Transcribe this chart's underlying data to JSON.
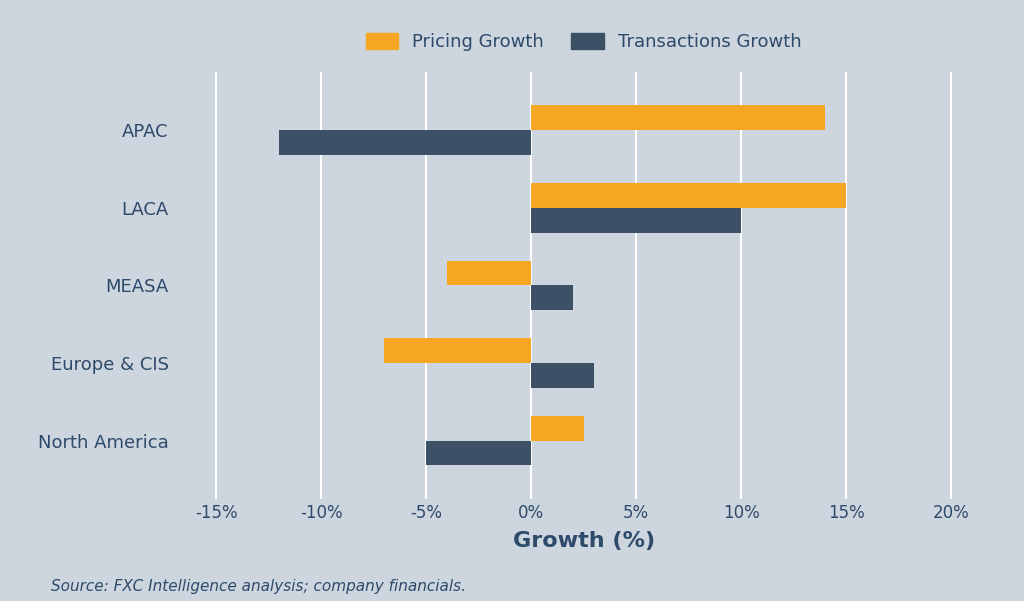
{
  "categories": [
    "North America",
    "Europe & CIS",
    "MEASA",
    "LACA",
    "APAC"
  ],
  "pricing_growth": [
    2.5,
    -7.0,
    -4.0,
    15.0,
    14.0
  ],
  "transactions_growth": [
    -5.0,
    3.0,
    2.0,
    10.0,
    -12.0
  ],
  "pricing_color": "#F5A623",
  "transactions_color": "#3D5166",
  "background_color": "#CDD5DE",
  "grid_color": "#FFFFFF",
  "title_pricing": "Pricing Growth",
  "title_transactions": "Transactions Growth",
  "xlabel": "Growth (%)",
  "source_text": "Source: FXC Intelligence analysis; company financials.",
  "xlim": [
    -17,
    22
  ],
  "xticks": [
    -15,
    -10,
    -5,
    0,
    5,
    10,
    15,
    20
  ],
  "xtick_labels": [
    "-15%",
    "-10%",
    "-5%",
    "0%",
    "5%",
    "10%",
    "15%",
    "20%"
  ],
  "bar_height": 0.32,
  "label_fontsize": 13,
  "tick_fontsize": 12,
  "legend_fontsize": 13,
  "source_fontsize": 11,
  "xlabel_fontsize": 16,
  "text_color": "#2E4A6B"
}
